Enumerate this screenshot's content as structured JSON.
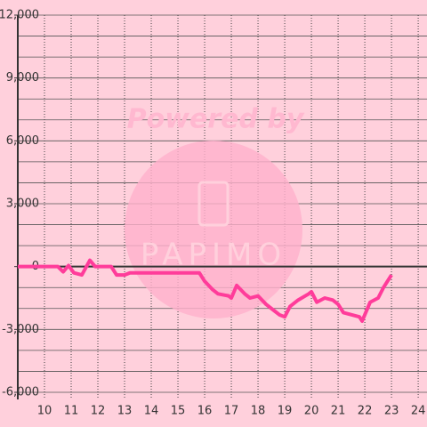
{
  "chart_data": {
    "type": "line",
    "watermark": {
      "top": "Powered by",
      "logo": "PAPIMO"
    },
    "x": [
      9,
      10.5,
      10.7,
      10.9,
      11.1,
      11.4,
      11.7,
      11.9,
      12.5,
      12.7,
      13.0,
      13.2,
      15.8,
      16.0,
      16.3,
      16.5,
      16.9,
      17.0,
      17.2,
      17.5,
      17.7,
      18.0,
      18.3,
      18.6,
      18.8,
      19.0,
      19.2,
      19.5,
      19.9,
      20.0,
      20.2,
      20.5,
      20.8,
      21.0,
      21.2,
      21.5,
      21.8,
      21.9,
      22.2,
      22.5,
      22.7,
      23.0
    ],
    "series": [
      {
        "color": "#ff3c9a",
        "values": [
          0,
          0,
          -250,
          50,
          -300,
          -400,
          300,
          0,
          0,
          -400,
          -400,
          -300,
          -300,
          -700,
          -1100,
          -1300,
          -1400,
          -1500,
          -900,
          -1300,
          -1500,
          -1400,
          -1800,
          -2100,
          -2300,
          -2400,
          -1900,
          -1600,
          -1300,
          -1200,
          -1700,
          -1500,
          -1600,
          -1800,
          -2200,
          -2300,
          -2400,
          -2600,
          -1700,
          -1500,
          -1000,
          -400
        ]
      }
    ],
    "xlim": [
      9,
      24.33
    ],
    "xticks": [
      10,
      11,
      12,
      13,
      14,
      15,
      16,
      17,
      18,
      19,
      20,
      21,
      22,
      23,
      24
    ],
    "ylim": [
      -6000,
      12000
    ],
    "yticks": [
      {
        "value": -6000,
        "label": "-6,000"
      },
      {
        "value": -3000,
        "label": "-3,000"
      },
      0,
      {
        "value": 3000,
        "label": "3,000"
      },
      {
        "value": 6000,
        "label": "6,000"
      },
      {
        "value": 9000,
        "label": "9,000"
      },
      {
        "value": 12000,
        "label": "12,000"
      }
    ],
    "y_minor_step": 1000,
    "grid": true,
    "background": "#ffd0dc"
  }
}
